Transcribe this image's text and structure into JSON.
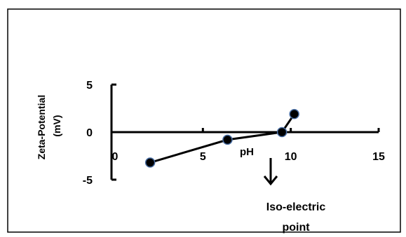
{
  "chart_data": {
    "type": "scatter",
    "title": "",
    "xlabel": "pH",
    "ylabel": "Zeta-Potential (mV)",
    "ylabel_lines": [
      "Zeta-Potential",
      "(mV)"
    ],
    "xlim": [
      0,
      15
    ],
    "ylim": [
      -5,
      5
    ],
    "x_ticks": [
      0,
      5,
      10,
      15
    ],
    "y_ticks": [
      -5,
      0,
      5
    ],
    "x_tick_labels": [
      "0",
      "5",
      "10",
      "15"
    ],
    "y_tick_labels": [
      "-5",
      "0",
      "5"
    ],
    "grid": false,
    "legend": false,
    "series": [
      {
        "x": [
          2,
          6.4,
          9.5,
          10.2
        ],
        "y": [
          -3.2,
          -0.8,
          0,
          1.9
        ]
      }
    ],
    "annotations": [
      {
        "text": "Iso-electric point",
        "lines": [
          "Iso-electric",
          "point"
        ],
        "x": 9.4,
        "y": 0
      }
    ],
    "colors": {
      "line": "#000000",
      "marker_fill": "#000000",
      "marker_edge": "#4a6fa5",
      "frame": "#000000"
    }
  }
}
